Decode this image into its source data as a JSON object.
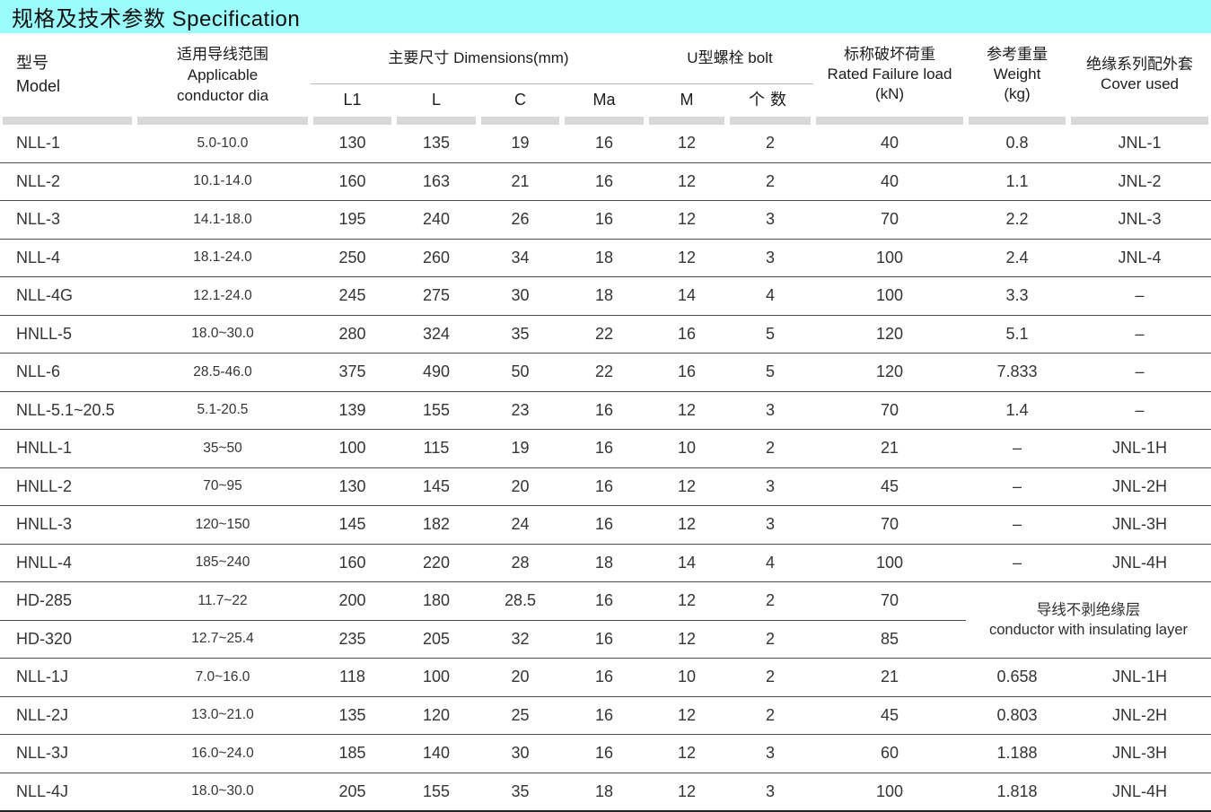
{
  "title_bar": {
    "title": "规格及技术参数 Specification"
  },
  "colors": {
    "title_bg": "#9bfcfc",
    "header_band": "#d8d8d8",
    "row_line": "#4f4f4f"
  },
  "table": {
    "col_keys": [
      "model",
      "conductor_dia",
      "L1",
      "L",
      "C",
      "Ma",
      "M",
      "bolt_qty",
      "rated_load",
      "weight",
      "cover"
    ],
    "headers": {
      "model": {
        "zh": "型号",
        "en": "Model"
      },
      "conductor": {
        "zh": "适用导线范围",
        "en_line1": "Applicable",
        "en_line2": "conductor dia"
      },
      "dimensions": {
        "label": "主要尺寸 Dimensions(mm)",
        "sub": [
          "L1",
          "L",
          "C",
          "Ma"
        ]
      },
      "bolt": {
        "label": "U型螺栓 bolt",
        "sub": [
          "M",
          "个数"
        ]
      },
      "load": {
        "zh": "标称破坏荷重",
        "en": "Rated Failure load",
        "unit": "(kN)"
      },
      "weight": {
        "zh": "参考重量",
        "en": "Weight",
        "unit": "(kg)"
      },
      "cover": {
        "zh": "绝缘系列配外套",
        "en": "Cover used"
      }
    },
    "merged_note": {
      "zh": "导线不剥绝缘层",
      "en": "conductor with insulating layer"
    },
    "rows": [
      {
        "cells": [
          "NLL-1",
          "5.0-10.0",
          "130",
          "135",
          "19",
          "16",
          "12",
          "2",
          "40",
          "0.8",
          "JNL-1"
        ]
      },
      {
        "cells": [
          "NLL-2",
          "10.1-14.0",
          "160",
          "163",
          "21",
          "16",
          "12",
          "2",
          "40",
          "1.1",
          "JNL-2"
        ]
      },
      {
        "cells": [
          "NLL-3",
          "14.1-18.0",
          "195",
          "240",
          "26",
          "16",
          "12",
          "3",
          "70",
          "2.2",
          "JNL-3"
        ]
      },
      {
        "cells": [
          "NLL-4",
          "18.1-24.0",
          "250",
          "260",
          "34",
          "18",
          "12",
          "3",
          "100",
          "2.4",
          "JNL-4"
        ]
      },
      {
        "cells": [
          "NLL-4G",
          "12.1-24.0",
          "245",
          "275",
          "30",
          "18",
          "14",
          "4",
          "100",
          "3.3",
          "–"
        ]
      },
      {
        "cells": [
          "HNLL-5",
          "18.0~30.0",
          "280",
          "324",
          "35",
          "22",
          "16",
          "5",
          "120",
          "5.1",
          "–"
        ]
      },
      {
        "cells": [
          "NLL-6",
          "28.5-46.0",
          "375",
          "490",
          "50",
          "22",
          "16",
          "5",
          "120",
          "7.833",
          "–"
        ]
      },
      {
        "cells": [
          "NLL-5.1~20.5",
          "5.1-20.5",
          "139",
          "155",
          "23",
          "16",
          "12",
          "3",
          "70",
          "1.4",
          "–"
        ]
      },
      {
        "cells": [
          "HNLL-1",
          "35~50",
          "100",
          "115",
          "19",
          "16",
          "10",
          "2",
          "21",
          "–",
          "JNL-1H"
        ]
      },
      {
        "cells": [
          "HNLL-2",
          "70~95",
          "130",
          "145",
          "20",
          "16",
          "12",
          "3",
          "45",
          "–",
          "JNL-2H"
        ]
      },
      {
        "cells": [
          "HNLL-3",
          "120~150",
          "145",
          "182",
          "24",
          "16",
          "12",
          "3",
          "70",
          "–",
          "JNL-3H"
        ]
      },
      {
        "cells": [
          "HNLL-4",
          "185~240",
          "160",
          "220",
          "28",
          "18",
          "14",
          "4",
          "100",
          "–",
          "JNL-4H"
        ]
      },
      {
        "cells": [
          "HD-285",
          "11.7~22",
          "200",
          "180",
          "28.5",
          "16",
          "12",
          "2",
          "70"
        ],
        "merged_note_start": true
      },
      {
        "cells": [
          "HD-320",
          "12.7~25.4",
          "235",
          "205",
          "32",
          "16",
          "12",
          "2",
          "85"
        ]
      },
      {
        "cells": [
          "NLL-1J",
          "7.0~16.0",
          "118",
          "100",
          "20",
          "16",
          "10",
          "2",
          "21",
          "0.658",
          "JNL-1H"
        ]
      },
      {
        "cells": [
          "NLL-2J",
          "13.0~21.0",
          "135",
          "120",
          "25",
          "16",
          "12",
          "2",
          "45",
          "0.803",
          "JNL-2H"
        ]
      },
      {
        "cells": [
          "NLL-3J",
          "16.0~24.0",
          "185",
          "140",
          "30",
          "16",
          "12",
          "3",
          "60",
          "1.188",
          "JNL-3H"
        ]
      },
      {
        "cells": [
          "NLL-4J",
          "18.0~30.0",
          "205",
          "155",
          "35",
          "18",
          "12",
          "3",
          "100",
          "1.818",
          "JNL-4H"
        ]
      }
    ]
  }
}
